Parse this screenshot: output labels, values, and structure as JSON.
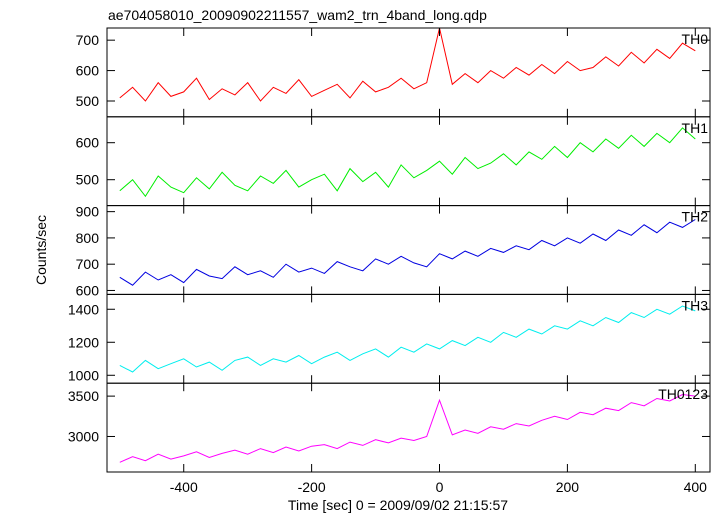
{
  "chart_data": {
    "type": "line",
    "title": "ae704058010_20090902211557_wam2_trn_4band_long.qdp",
    "xlabel": "Time [sec] 0 = 2009/09/02 21:15:57",
    "ylabel": "Counts/sec",
    "xlim": [
      -520,
      423
    ],
    "xticks": [
      -400,
      -200,
      0,
      200,
      400
    ],
    "x": [
      -500,
      -480,
      -460,
      -440,
      -420,
      -400,
      -380,
      -360,
      -340,
      -320,
      -300,
      -280,
      -260,
      -240,
      -220,
      -200,
      -180,
      -160,
      -140,
      -120,
      -100,
      -80,
      -60,
      -40,
      -20,
      0,
      20,
      40,
      60,
      80,
      100,
      120,
      140,
      160,
      180,
      200,
      220,
      240,
      260,
      280,
      300,
      320,
      340,
      360,
      380,
      400
    ],
    "series": [
      {
        "name": "TH0",
        "color": "#ff0000",
        "ylim": [
          448,
          740
        ],
        "yticks": [
          500,
          600,
          700
        ],
        "values": [
          510,
          545,
          500,
          560,
          515,
          530,
          575,
          505,
          540,
          520,
          560,
          500,
          545,
          525,
          570,
          515,
          535,
          555,
          510,
          565,
          530,
          545,
          575,
          540,
          560,
          740,
          555,
          590,
          560,
          600,
          575,
          610,
          585,
          620,
          590,
          630,
          600,
          610,
          645,
          615,
          660,
          625,
          670,
          640,
          690,
          665
        ]
      },
      {
        "name": "TH1",
        "color": "#00ee00",
        "ylim": [
          430,
          670
        ],
        "yticks": [
          500,
          600
        ],
        "values": [
          470,
          500,
          455,
          510,
          480,
          465,
          505,
          475,
          520,
          485,
          470,
          510,
          490,
          525,
          480,
          500,
          515,
          470,
          530,
          495,
          520,
          480,
          540,
          505,
          525,
          550,
          515,
          560,
          530,
          545,
          570,
          540,
          575,
          555,
          590,
          560,
          600,
          575,
          610,
          585,
          620,
          590,
          625,
          600,
          640,
          610
        ]
      },
      {
        "name": "TH2",
        "color": "#0000e0",
        "ylim": [
          585,
          923
        ],
        "yticks": [
          600,
          700,
          800,
          900
        ],
        "values": [
          650,
          620,
          670,
          640,
          660,
          630,
          680,
          655,
          645,
          690,
          660,
          675,
          650,
          700,
          670,
          685,
          665,
          710,
          690,
          675,
          720,
          700,
          730,
          705,
          690,
          740,
          720,
          750,
          730,
          760,
          745,
          770,
          755,
          790,
          770,
          800,
          780,
          815,
          790,
          830,
          810,
          850,
          820,
          860,
          840,
          870
        ]
      },
      {
        "name": "TH3",
        "color": "#00eeee",
        "ylim": [
          952,
          1490
        ],
        "yticks": [
          1000,
          1200,
          1400
        ],
        "values": [
          1060,
          1020,
          1090,
          1040,
          1070,
          1100,
          1050,
          1080,
          1030,
          1090,
          1110,
          1060,
          1100,
          1080,
          1120,
          1070,
          1110,
          1140,
          1090,
          1130,
          1160,
          1110,
          1170,
          1140,
          1190,
          1160,
          1210,
          1180,
          1230,
          1200,
          1260,
          1230,
          1280,
          1250,
          1300,
          1280,
          1330,
          1300,
          1350,
          1320,
          1380,
          1350,
          1400,
          1370,
          1420,
          1390
        ]
      },
      {
        "name": "TH0123",
        "color": "#ff00ff",
        "ylim": [
          2560,
          3660
        ],
        "yticks": [
          3000,
          3500
        ],
        "values": [
          2680,
          2750,
          2700,
          2780,
          2720,
          2760,
          2810,
          2740,
          2790,
          2830,
          2780,
          2850,
          2800,
          2870,
          2820,
          2880,
          2900,
          2850,
          2930,
          2890,
          2960,
          2920,
          2980,
          2950,
          3000,
          3450,
          3020,
          3080,
          3040,
          3120,
          3090,
          3160,
          3130,
          3200,
          3250,
          3210,
          3300,
          3270,
          3350,
          3320,
          3420,
          3380,
          3470,
          3440,
          3520,
          3500
        ]
      }
    ]
  }
}
